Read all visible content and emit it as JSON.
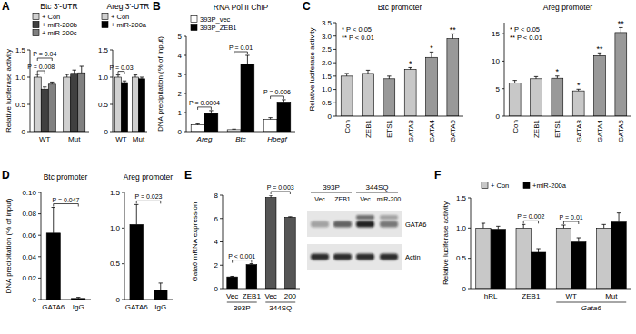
{
  "chart_data": [
    {
      "panel": "A",
      "type": "bar",
      "title": "Btc 3'-UTR",
      "y_label": "Relative luciferase activity",
      "categories": [
        "WT",
        "Mut"
      ],
      "series": [
        {
          "name": "+ Con",
          "color": "#d0d0d0",
          "values": [
            1.0,
            1.0
          ],
          "errors": [
            0.05,
            0.05
          ]
        },
        {
          "name": "+ miR-200b",
          "color": "#404040",
          "values": [
            0.78,
            1.07
          ],
          "errors": [
            0.04,
            0.06
          ]
        },
        {
          "name": "+ miR-200c",
          "color": "#808080",
          "values": [
            0.87,
            1.08
          ],
          "errors": [
            0.04,
            0.12
          ]
        }
      ],
      "ylim": [
        0,
        1.5
      ],
      "yticks": [
        0,
        0.5,
        {
          "value": 1,
          "label": "1.0"
        },
        1.5
      ],
      "legend": "top-left",
      "annotations": [
        {
          "text": "P = 0.008",
          "category": 0,
          "series": [
            0,
            1
          ]
        },
        {
          "text": "P = 0.04",
          "category": 0,
          "series": [
            0,
            2
          ]
        }
      ]
    },
    {
      "type": "bar",
      "title": "Areg 3'-UTR",
      "categories": [
        "WT",
        "Mut"
      ],
      "series": [
        {
          "name": "+ Con",
          "color": "#d0d0d0",
          "values": [
            1.0,
            1.0
          ],
          "errors": [
            0.04,
            0.04
          ]
        },
        {
          "name": "+ miR-200a",
          "color": "#000000",
          "values": [
            0.9,
            0.97
          ],
          "errors": [
            0.03,
            0.03
          ]
        }
      ],
      "ylim": [
        0,
        1.5
      ],
      "yticks": [
        0,
        0.5,
        {
          "value": 1,
          "label": "1.0"
        },
        1.5
      ],
      "legend": "top-left",
      "annotations": [
        {
          "text": "P = 0.03",
          "category": 0,
          "series": [
            0,
            1
          ]
        }
      ]
    },
    {
      "panel": "B",
      "type": "bar",
      "title": "RNA Pol II ChIP",
      "y_label": "DNA precipitation (% of input)",
      "categories": [
        "Areg",
        "Btc",
        "Hbegf"
      ],
      "series": [
        {
          "name": "393P_vec",
          "color": "#ffffff",
          "values": [
            0.35,
            0.1,
            0.65
          ],
          "errors": [
            0.05,
            0.03,
            0.08
          ]
        },
        {
          "name": "393P_ZEB1",
          "color": "#000000",
          "values": [
            0.95,
            3.55,
            1.55
          ],
          "errors": [
            0.15,
            0.45,
            0.12
          ]
        }
      ],
      "ylim": [
        0,
        5
      ],
      "yticks": [
        0,
        1,
        2,
        3,
        4,
        5
      ],
      "legend": "top-left",
      "annotations": [
        {
          "text": "P = 0.0004",
          "category": 0,
          "series": [
            0,
            1
          ]
        },
        {
          "text": "P = 0.01",
          "category": 1,
          "series": [
            0,
            1
          ]
        },
        {
          "text": "P = 0.006",
          "category": 2,
          "series": [
            0,
            1
          ]
        }
      ]
    },
    {
      "panel": "C",
      "type": "bar",
      "title": "Btc promoter",
      "y_label": "Relative luciferase activity",
      "categories": [
        "Con",
        "ZEB1",
        "ETS1",
        "GATA3",
        "GATA4",
        "GATA6"
      ],
      "values": [
        1.5,
        1.6,
        1.4,
        1.75,
        2.2,
        2.9
      ],
      "errors": [
        0.1,
        0.12,
        0.1,
        0.07,
        0.2,
        0.18
      ],
      "colors": [
        "#c8c8c8",
        "#c8c8c8",
        "#999999",
        "#c8c8c8",
        "#999999",
        "#999999"
      ],
      "ylim": [
        0,
        3.5
      ],
      "yticks": [
        0,
        0.5,
        {
          "value": 1,
          "label": "1.0"
        },
        1.5,
        {
          "value": 2,
          "label": "2.0"
        },
        2.5,
        {
          "value": 3,
          "label": "3.0"
        },
        3.5
      ],
      "annotations": [
        {
          "text": "* P < 0.05"
        },
        {
          "text": "** P < 0.01"
        },
        {
          "text": "*",
          "categories": [
            3
          ]
        },
        {
          "text": "*",
          "categories": [
            4
          ]
        },
        {
          "text": "**",
          "categories": [
            5
          ]
        }
      ]
    },
    {
      "type": "bar",
      "title": "Areg promoter",
      "categories": [
        "Con",
        "ZEB1",
        "ETS1",
        "GATA3",
        "GATA4",
        "GATA6"
      ],
      "values": [
        6.0,
        6.8,
        6.9,
        4.6,
        11.0,
        15.2
      ],
      "errors": [
        0.5,
        0.4,
        0.4,
        0.3,
        0.5,
        0.9
      ],
      "colors": [
        "#c8c8c8",
        "#c8c8c8",
        "#999999",
        "#c8c8c8",
        "#999999",
        "#999999"
      ],
      "ylim": [
        0,
        17
      ],
      "yticks": [
        0,
        5,
        10,
        15
      ],
      "annotations": [
        {
          "text": "* P < 0.05"
        },
        {
          "text": "** P < 0.01"
        },
        {
          "text": "*",
          "categories": [
            2
          ]
        },
        {
          "text": "*",
          "categories": [
            3
          ]
        },
        {
          "text": "**",
          "categories": [
            4
          ]
        },
        {
          "text": "**",
          "categories": [
            5
          ]
        }
      ]
    },
    {
      "panel": "D",
      "type": "bar",
      "title": "Btc promoter",
      "y_label": "DNA precipitation (% of input)",
      "categories": [
        "GATA6",
        "IgG"
      ],
      "values": [
        0.062,
        0.001
      ],
      "errors": [
        0.024,
        0.001
      ],
      "color": "#000000",
      "ylim": [
        0,
        0.1
      ],
      "yticks": [
        0,
        0.02,
        0.04,
        0.06,
        0.08,
        {
          "value": 0.1,
          "label": "0.10"
        }
      ],
      "annotations": [
        {
          "text": "P = 0.047",
          "categories": [
            0,
            1
          ]
        }
      ]
    },
    {
      "type": "bar",
      "title": "Areg promoter",
      "categories": [
        "GATA6",
        "IgG"
      ],
      "values": [
        1.05,
        0.13
      ],
      "errors": [
        0.28,
        0.1
      ],
      "color": "#000000",
      "ylim": [
        0,
        1.5
      ],
      "yticks": [
        0,
        0.5,
        {
          "value": 1,
          "label": "1.0"
        },
        1.5
      ],
      "annotations": [
        {
          "text": "P = 0.023",
          "categories": [
            0,
            1
          ]
        }
      ]
    },
    {
      "panel": "E",
      "type": "bar",
      "y_label": "Gata6 mRNA expression",
      "categories": [
        "Vec",
        "ZEB1",
        "Vec",
        "200"
      ],
      "values": [
        1.0,
        2.05,
        7.8,
        6.1
      ],
      "errors": [
        0.05,
        0.08,
        0.2,
        0.05
      ],
      "colors": [
        "#000000",
        "#000000",
        "#555555",
        "#555555"
      ],
      "ylim": [
        0,
        8
      ],
      "yticks": [
        0,
        2,
        4,
        6,
        8
      ],
      "annotations": [
        {
          "text": "P < 0.001",
          "categories": [
            0,
            1
          ]
        },
        {
          "text": "P = 0.003",
          "categories": [
            2,
            3
          ]
        }
      ],
      "x_groups": [
        {
          "label": "393P",
          "categories": [
            0,
            1
          ]
        },
        {
          "label": "344SQ",
          "categories": [
            2,
            3
          ]
        }
      ]
    },
    {
      "panel": "F",
      "type": "bar",
      "y_label": "Relative luciferase activity",
      "categories": [
        "hRL",
        "ZEB1",
        "WT",
        "Mut"
      ],
      "series": [
        {
          "name": "+ Con",
          "color": "#c8c8c8",
          "values": [
            1.0,
            1.0,
            1.0,
            1.0
          ],
          "errors": [
            0.08,
            0.06,
            0.05,
            0.06
          ]
        },
        {
          "name": "+miR-200a",
          "color": "#000000",
          "values": [
            0.98,
            0.6,
            0.77,
            1.1
          ],
          "errors": [
            0.05,
            0.06,
            0.07,
            0.15
          ]
        }
      ],
      "ylim": [
        0,
        1.5
      ],
      "yticks": [
        0,
        0.5,
        {
          "value": 1,
          "label": "1.0"
        },
        1.5
      ],
      "legend": "top",
      "annotations": [
        {
          "text": "P = 0.002",
          "category": 1,
          "series": [
            0,
            1
          ]
        },
        {
          "text": "P = 0.01",
          "category": 2,
          "series": [
            0,
            1
          ]
        }
      ],
      "x_groups": [
        {
          "label": "Gata6",
          "categories": [
            2,
            3
          ]
        }
      ]
    }
  ],
  "western_blot": {
    "groups": [
      {
        "label": "393P",
        "lanes": [
          "Vec",
          "ZEB1"
        ]
      },
      {
        "label": "344SQ",
        "lanes": [
          "Vec",
          "miR-200"
        ]
      }
    ],
    "rows": [
      "GATA6",
      "Actin"
    ]
  }
}
